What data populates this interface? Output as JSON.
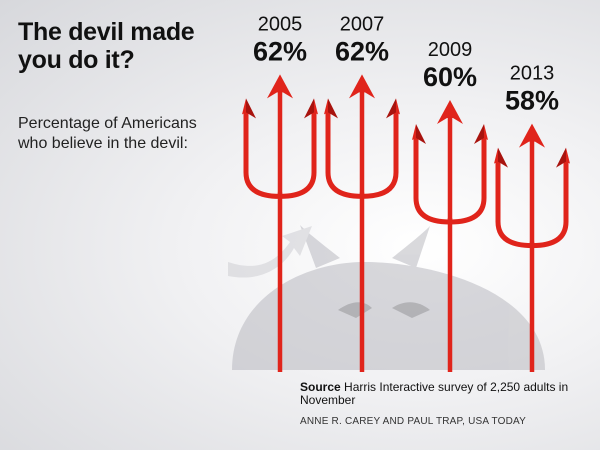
{
  "title": "The devil made you do it?",
  "subtitle": "Percentage of Americans who believe in the devil:",
  "source": {
    "label": "Source",
    "text": "Harris Interactive survey of 2,250 adults in November"
  },
  "credit": "ANNE R. CAREY AND PAUL TRAP, USA TODAY",
  "colors": {
    "pitchfork": "#e0241b",
    "pitchfork_dark": "#a8130e",
    "devil_shadow": "#b9b9c0"
  },
  "chart_data": {
    "type": "bar",
    "categories": [
      "2005",
      "2007",
      "2009",
      "2013"
    ],
    "values": [
      62,
      62,
      60,
      58
    ],
    "value_labels": [
      "62%",
      "62%",
      "60%",
      "58%"
    ],
    "ylabel": "",
    "xlabel": ""
  }
}
